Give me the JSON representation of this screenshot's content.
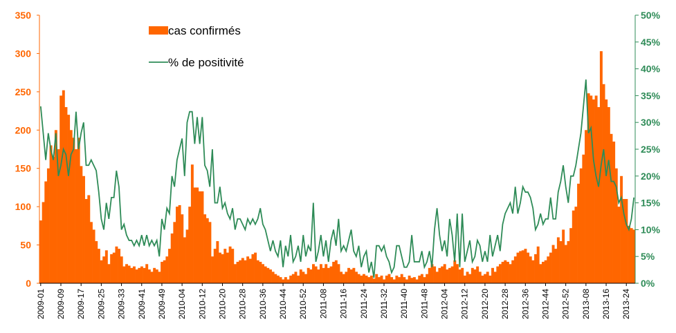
{
  "chart_data": {
    "type": "bar",
    "categories": [
      "2009-01",
      null,
      null,
      null,
      null,
      null,
      null,
      null,
      "2009-09",
      null,
      null,
      null,
      null,
      null,
      null,
      null,
      "2009-17",
      null,
      null,
      null,
      null,
      null,
      null,
      null,
      "2009-25",
      null,
      null,
      null,
      null,
      null,
      null,
      null,
      "2009-33",
      null,
      null,
      null,
      null,
      null,
      null,
      null,
      "2009-41",
      null,
      null,
      null,
      null,
      null,
      null,
      null,
      "2009-49",
      null,
      null,
      null,
      null,
      null,
      null,
      null,
      "2010-04",
      null,
      null,
      null,
      null,
      null,
      null,
      null,
      "2010-12",
      null,
      null,
      null,
      null,
      null,
      null,
      null,
      "2010-20",
      null,
      null,
      null,
      null,
      null,
      null,
      null,
      "2010-28",
      null,
      null,
      null,
      null,
      null,
      null,
      null,
      "2010-36",
      null,
      null,
      null,
      null,
      null,
      null,
      null,
      "2010-44",
      null,
      null,
      null,
      null,
      null,
      null,
      null,
      "2010-52",
      null,
      null,
      null,
      null,
      null,
      null,
      null,
      "2011-08",
      null,
      null,
      null,
      null,
      null,
      null,
      null,
      "2011-16",
      null,
      null,
      null,
      null,
      null,
      null,
      null,
      "2011-24",
      null,
      null,
      null,
      null,
      null,
      null,
      null,
      "2011-32",
      null,
      null,
      null,
      null,
      null,
      null,
      null,
      "2011-40",
      null,
      null,
      null,
      null,
      null,
      null,
      null,
      "2011-48",
      null,
      null,
      null,
      null,
      null,
      null,
      null,
      "2012-04",
      null,
      null,
      null,
      null,
      null,
      null,
      null,
      "2012-12",
      null,
      null,
      null,
      null,
      null,
      null,
      null,
      "2012-20",
      null,
      null,
      null,
      null,
      null,
      null,
      null,
      "2012-28",
      null,
      null,
      null,
      null,
      null,
      null,
      null,
      "2012-36",
      null,
      null,
      null,
      null,
      null,
      null,
      null,
      "2012-44",
      null,
      null,
      null,
      null,
      null,
      null,
      null,
      "2012-52",
      null,
      null,
      null,
      null,
      null,
      null,
      null,
      "2013-08",
      null,
      null,
      null,
      null,
      null,
      null,
      null,
      "2013-16",
      null,
      null,
      null,
      null,
      null,
      null,
      null,
      "2013-24",
      null,
      null,
      null
    ],
    "series": [
      {
        "name": "cas confirmés",
        "type": "bar",
        "color": "#ff6600",
        "values": [
          82,
          106,
          133,
          150,
          180,
          165,
          200,
          175,
          245,
          252,
          230,
          220,
          200,
          190,
          175,
          190,
          153,
          140,
          110,
          115,
          80,
          70,
          55,
          45,
          30,
          35,
          43,
          25,
          38,
          40,
          48,
          45,
          35,
          22,
          25,
          23,
          20,
          22,
          18,
          20,
          22,
          20,
          25,
          18,
          15,
          20,
          18,
          15,
          28,
          30,
          35,
          45,
          65,
          80,
          100,
          102,
          90,
          60,
          70,
          100,
          155,
          125,
          125,
          120,
          120,
          90,
          85,
          80,
          35,
          45,
          55,
          40,
          38,
          45,
          40,
          48,
          45,
          25,
          28,
          30,
          33,
          30,
          35,
          32,
          38,
          40,
          30,
          28,
          25,
          22,
          20,
          18,
          15,
          12,
          10,
          8,
          5,
          8,
          5,
          10,
          12,
          15,
          10,
          18,
          15,
          12,
          20,
          18,
          25,
          22,
          18,
          25,
          20,
          25,
          20,
          22,
          28,
          30,
          25,
          15,
          12,
          15,
          20,
          18,
          20,
          15,
          12,
          10,
          12,
          10,
          8,
          10,
          6,
          12,
          8,
          10,
          5,
          10,
          12,
          8,
          5,
          10,
          8,
          12,
          8,
          5,
          10,
          7,
          8,
          5,
          10,
          12,
          8,
          12,
          20,
          25,
          22,
          15,
          20,
          22,
          25,
          18,
          20,
          22,
          30,
          25,
          18,
          20,
          10,
          15,
          12,
          20,
          18,
          22,
          15,
          10,
          12,
          15,
          10,
          20,
          15,
          22,
          25,
          28,
          30,
          28,
          25,
          30,
          35,
          40,
          42,
          43,
          45,
          40,
          35,
          30,
          38,
          48,
          25,
          28,
          30,
          35,
          40,
          50,
          45,
          60,
          55,
          70,
          50,
          55,
          72,
          95,
          100,
          130,
          150,
          168,
          200,
          248,
          245,
          240,
          245,
          230,
          303,
          260,
          240,
          230,
          195,
          185,
          150,
          100,
          140,
          110,
          110,
          75,
          72,
          70
        ]
      },
      {
        "name": "% de positivité",
        "type": "line",
        "axis": "y2",
        "color": "#2e8b57",
        "values": [
          33,
          28,
          23,
          28,
          25,
          23,
          28,
          20,
          22,
          25,
          24,
          20,
          24,
          25,
          32,
          25,
          28,
          30,
          22,
          22,
          23,
          22,
          21,
          17,
          12,
          10,
          15,
          12,
          16,
          16,
          21,
          18,
          10,
          11,
          9,
          8,
          8,
          7,
          8,
          7,
          9,
          7,
          9,
          7,
          8,
          7,
          8,
          5,
          12,
          10,
          14,
          13,
          20,
          18,
          23,
          25,
          27,
          20,
          30,
          32,
          32,
          26,
          31,
          26,
          31,
          22,
          21,
          18,
          25,
          15,
          15,
          18,
          14,
          15,
          13,
          12,
          14,
          10,
          12,
          12,
          11,
          10,
          12,
          11,
          12,
          11,
          12,
          14,
          11,
          10,
          8,
          6,
          8,
          6,
          5,
          8,
          3,
          7,
          5,
          9,
          4,
          5,
          7,
          4,
          9,
          5,
          7,
          6,
          15,
          4,
          6,
          9,
          5,
          8,
          4,
          8,
          10,
          7,
          12,
          6,
          7,
          6,
          8,
          10,
          6,
          5,
          7,
          3,
          5,
          6,
          2,
          4,
          1,
          7,
          7,
          6,
          7,
          5,
          4,
          2,
          3,
          7,
          7,
          5,
          3,
          3,
          4,
          9,
          4,
          4,
          4,
          6,
          3,
          4,
          6,
          3,
          10,
          14,
          9,
          6,
          8,
          5,
          12,
          9,
          4,
          13,
          3,
          13,
          4,
          6,
          8,
          4,
          5,
          8,
          7,
          4,
          6,
          4,
          9,
          5,
          7,
          9,
          6,
          11,
          13,
          14,
          15,
          13,
          18,
          13,
          15,
          18,
          17,
          17,
          16,
          14,
          10,
          11,
          13,
          11,
          12,
          12,
          16,
          12,
          12,
          17,
          19,
          22,
          18,
          15,
          20,
          20,
          22,
          25,
          28,
          33,
          38,
          28,
          29,
          23,
          20,
          18,
          22,
          25,
          20,
          23,
          19,
          19,
          18,
          15,
          16,
          13,
          11,
          10,
          12,
          16
        ]
      }
    ],
    "ylim": [
      0,
      350
    ],
    "yticks": [
      0,
      50,
      100,
      150,
      200,
      250,
      300,
      350
    ],
    "y2lim": [
      0,
      50
    ],
    "y2ticks": [
      {
        "value": 0,
        "label": "0%"
      },
      {
        "value": 5,
        "label": "5%"
      },
      {
        "value": 10,
        "label": "10%"
      },
      {
        "value": 15,
        "label": "15%"
      },
      {
        "value": 20,
        "label": "20%"
      },
      {
        "value": 25,
        "label": "25%"
      },
      {
        "value": 30,
        "label": "30%"
      },
      {
        "value": 35,
        "label": "35%"
      },
      {
        "value": 40,
        "label": "40%"
      },
      {
        "value": 45,
        "label": "45%"
      },
      {
        "value": 50,
        "label": "50%"
      }
    ],
    "grid": false,
    "legend": "top"
  }
}
